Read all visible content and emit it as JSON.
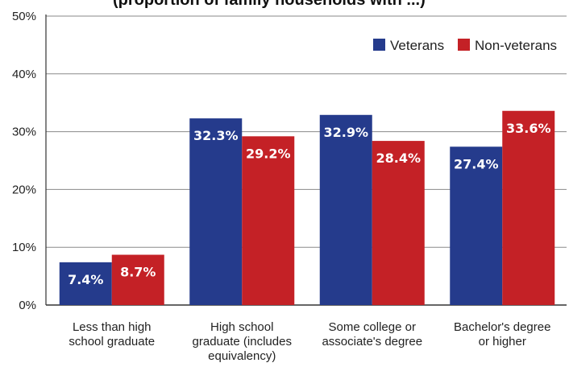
{
  "chart_data": {
    "type": "bar",
    "title_fragment": "(proportion of family households with ...)",
    "categories": [
      [
        "Less than high",
        "school graduate"
      ],
      [
        "High school",
        "graduate (includes",
        "equivalency)"
      ],
      [
        "Some college or",
        "associate's degree"
      ],
      [
        "Bachelor's degree",
        "or higher"
      ]
    ],
    "series": [
      {
        "name": "Veterans",
        "color": "#253b8c",
        "values": [
          7.4,
          32.3,
          32.9,
          27.4
        ],
        "labels": [
          "7.4%",
          "32.3%",
          "32.9%",
          "27.4%"
        ]
      },
      {
        "name": "Non-veterans",
        "color": "#c42126",
        "values": [
          8.7,
          29.2,
          28.4,
          33.6
        ],
        "labels": [
          "8.7%",
          "29.2%",
          "28.4%",
          "33.6%"
        ]
      }
    ],
    "ylim": [
      0,
      50
    ],
    "yticks": [
      "0%",
      "10%",
      "20%",
      "30%",
      "40%",
      "50%"
    ],
    "ytick_values": [
      0,
      10,
      20,
      30,
      40,
      50
    ],
    "grid": true,
    "legend_position": "top-right"
  }
}
